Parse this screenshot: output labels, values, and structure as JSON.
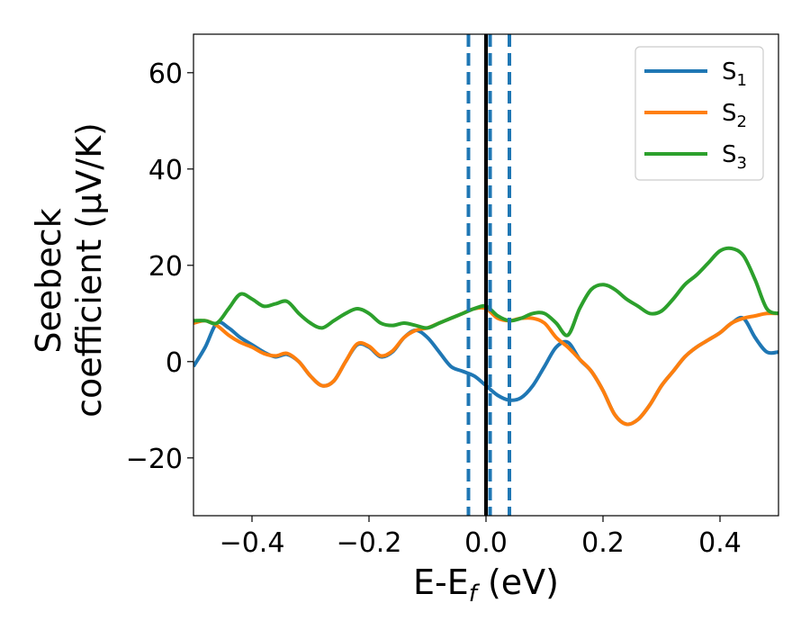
{
  "chart_data": {
    "type": "line",
    "title": "",
    "xlabel": {
      "main": "E-E",
      "sub": "f",
      "suffix": " (eV)"
    },
    "ylabel": {
      "line1": "Seebeck",
      "line2": "coefficient  (μV/K)"
    },
    "xlim": [
      -0.5,
      0.5
    ],
    "ylim": [
      -32,
      68
    ],
    "xticks": [
      -0.4,
      -0.2,
      0.0,
      0.2,
      0.4
    ],
    "xtick_labels": [
      "−0.4",
      "−0.2",
      "0.0",
      "0.2",
      "0.4"
    ],
    "yticks": [
      -20,
      0,
      20,
      40,
      60
    ],
    "ytick_labels": [
      "−20",
      "0",
      "20",
      "40",
      "60"
    ],
    "grid": false,
    "legend_position": "top-right",
    "vlines": [
      {
        "x": 0.0,
        "style": "solid",
        "color": "#000000"
      },
      {
        "x": -0.03,
        "style": "dashed",
        "color": "#1f77b4"
      },
      {
        "x": 0.007,
        "style": "dashed",
        "color": "#1f77b4"
      },
      {
        "x": 0.04,
        "style": "dashed",
        "color": "#1f77b4"
      }
    ],
    "series": [
      {
        "name": "S",
        "sub": "1",
        "color": "#1f77b4",
        "x": [
          -0.5,
          -0.48,
          -0.46,
          -0.44,
          -0.42,
          -0.4,
          -0.38,
          -0.36,
          -0.34,
          -0.32,
          -0.3,
          -0.28,
          -0.26,
          -0.24,
          -0.22,
          -0.2,
          -0.18,
          -0.16,
          -0.14,
          -0.12,
          -0.1,
          -0.08,
          -0.06,
          -0.04,
          -0.02,
          0.0,
          0.02,
          0.04,
          0.06,
          0.08,
          0.1,
          0.12,
          0.14,
          0.16,
          0.18,
          0.2,
          0.22,
          0.24,
          0.26,
          0.28,
          0.3,
          0.32,
          0.34,
          0.36,
          0.38,
          0.4,
          0.42,
          0.44,
          0.46,
          0.48,
          0.5
        ],
        "y": [
          -1,
          3,
          8,
          7,
          5,
          3.5,
          2,
          1,
          1.5,
          0,
          -3,
          -5,
          -4,
          0,
          3.5,
          3,
          1,
          2,
          5,
          6.5,
          5,
          2,
          -1,
          -2,
          -3,
          -5,
          -7,
          -8,
          -7.5,
          -5,
          -1,
          3,
          4,
          0.5,
          -2,
          -6,
          -11,
          -13,
          -12,
          -9,
          -5,
          -2,
          1,
          3,
          4.5,
          6,
          8,
          9,
          5,
          2,
          2
        ]
      },
      {
        "name": "S",
        "sub": "2",
        "color": "#ff7f0e",
        "x": [
          -0.5,
          -0.48,
          -0.46,
          -0.44,
          -0.42,
          -0.4,
          -0.38,
          -0.36,
          -0.34,
          -0.32,
          -0.3,
          -0.28,
          -0.26,
          -0.24,
          -0.22,
          -0.2,
          -0.18,
          -0.16,
          -0.14,
          -0.12,
          -0.1,
          -0.08,
          -0.06,
          -0.04,
          -0.02,
          0.0,
          0.02,
          0.04,
          0.06,
          0.08,
          0.1,
          0.12,
          0.14,
          0.16,
          0.18,
          0.2,
          0.22,
          0.24,
          0.26,
          0.28,
          0.3,
          0.32,
          0.34,
          0.36,
          0.38,
          0.4,
          0.42,
          0.44,
          0.46,
          0.48,
          0.5
        ],
        "y": [
          8,
          8.5,
          7.5,
          5.5,
          4,
          3,
          1.7,
          1.2,
          1.7,
          0,
          -3,
          -5,
          -4,
          0,
          3.7,
          3.2,
          1.2,
          2.2,
          5,
          6.5,
          7,
          8,
          9,
          10,
          11,
          11,
          9,
          8.5,
          9,
          9,
          8,
          5,
          3,
          0.5,
          -2,
          -6,
          -11,
          -13,
          -12,
          -9,
          -5,
          -2,
          1,
          3,
          4.5,
          6,
          8,
          9,
          9.5,
          10,
          10
        ]
      },
      {
        "name": "S",
        "sub": "3",
        "color": "#2ca02c",
        "x": [
          -0.5,
          -0.48,
          -0.46,
          -0.44,
          -0.42,
          -0.4,
          -0.38,
          -0.36,
          -0.34,
          -0.32,
          -0.3,
          -0.28,
          -0.26,
          -0.24,
          -0.22,
          -0.2,
          -0.18,
          -0.16,
          -0.14,
          -0.12,
          -0.1,
          -0.08,
          -0.06,
          -0.04,
          -0.02,
          0.0,
          0.02,
          0.04,
          0.06,
          0.08,
          0.1,
          0.12,
          0.14,
          0.16,
          0.18,
          0.2,
          0.22,
          0.24,
          0.26,
          0.28,
          0.3,
          0.32,
          0.34,
          0.36,
          0.38,
          0.4,
          0.42,
          0.44,
          0.46,
          0.48,
          0.5
        ],
        "y": [
          8.5,
          8.5,
          8,
          11,
          14,
          13,
          11.5,
          12,
          12.5,
          10,
          8,
          7,
          8.5,
          10,
          11,
          10,
          8,
          7.5,
          8,
          7.5,
          7,
          8,
          9,
          10,
          11,
          11.5,
          9.5,
          8.5,
          9,
          10,
          10,
          8,
          5.5,
          11,
          15,
          16,
          15,
          13,
          11.5,
          10,
          10.5,
          13,
          16,
          18,
          20.5,
          23,
          23.5,
          22,
          17,
          11,
          10
        ]
      }
    ]
  }
}
